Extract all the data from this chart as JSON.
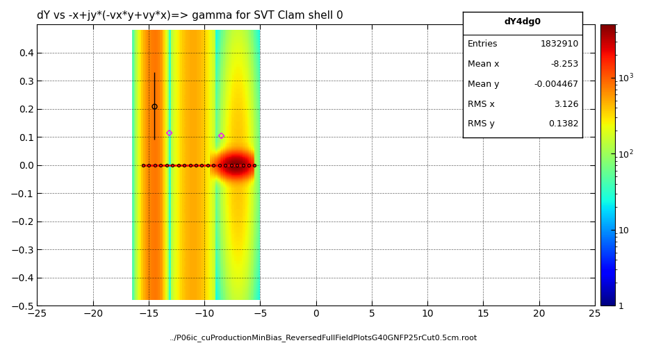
{
  "title": "dY vs -x+jy*(-vx*y+vy*x)=> gamma for SVT Clam shell 0",
  "footer": "../P06ic_cuProductionMinBias_ReversedFullFieldPlotsG40GNFP25rCut0.5cm.root",
  "xlim": [
    -25,
    25
  ],
  "ylim": [
    -0.5,
    0.5
  ],
  "xticks": [
    -25,
    -20,
    -15,
    -10,
    -5,
    0,
    5,
    10,
    15,
    20,
    25
  ],
  "yticks": [
    -0.5,
    -0.4,
    -0.3,
    -0.2,
    -0.1,
    0.0,
    0.1,
    0.2,
    0.3,
    0.4
  ],
  "stats_title": "dY4dg0",
  "stats_entries": "1832910",
  "stats_meanx": "-8.253",
  "stats_meany": "-0.004467",
  "stats_rmsx": "3.126",
  "stats_rmsy": "0.1382",
  "cmap": "jet",
  "zmin": 1,
  "zmax": 5000,
  "background": "#ffffff"
}
